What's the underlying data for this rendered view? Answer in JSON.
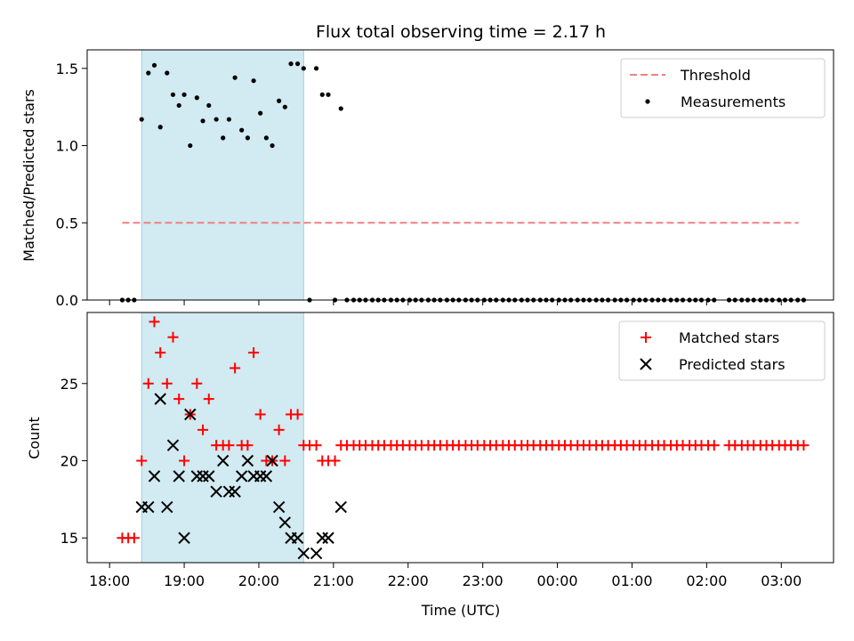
{
  "chart_data": [
    {
      "type": "scatter",
      "title": "Flux total observing time = 2.17 h",
      "xlabel": "",
      "ylabel": "Matched/Predicted stars",
      "ylim": [
        0,
        1.62
      ],
      "yticks": [
        "0.0",
        "0.5",
        "1.0",
        "1.5"
      ],
      "ytick_values": [
        0,
        0.5,
        1.0,
        1.5
      ],
      "xlim_hours": [
        17.7,
        27.7
      ],
      "highlight_band_hours": [
        18.43,
        20.6
      ],
      "highlight_color": "#add8e6",
      "legend": {
        "placement": "upper right",
        "entries": [
          "Threshold",
          "Measurements"
        ]
      },
      "series": [
        {
          "name": "Threshold",
          "kind": "dashed-line",
          "color": "#f08080",
          "x_hours": [
            18.17,
            27.23
          ],
          "values": [
            0.5,
            0.5
          ]
        },
        {
          "name": "Measurements",
          "kind": "points",
          "color": "#000000",
          "points": [
            [
              18.17,
              0
            ],
            [
              18.25,
              0
            ],
            [
              18.33,
              0
            ],
            [
              18.43,
              1.17
            ],
            [
              18.52,
              1.47
            ],
            [
              18.6,
              1.52
            ],
            [
              18.68,
              1.12
            ],
            [
              18.77,
              1.47
            ],
            [
              18.85,
              1.33
            ],
            [
              18.93,
              1.26
            ],
            [
              19.0,
              1.33
            ],
            [
              19.08,
              1.0
            ],
            [
              19.17,
              1.31
            ],
            [
              19.25,
              1.16
            ],
            [
              19.33,
              1.26
            ],
            [
              19.43,
              1.17
            ],
            [
              19.52,
              1.05
            ],
            [
              19.6,
              1.17
            ],
            [
              19.68,
              1.44
            ],
            [
              19.77,
              1.1
            ],
            [
              19.85,
              1.05
            ],
            [
              19.93,
              1.42
            ],
            [
              20.02,
              1.21
            ],
            [
              20.1,
              1.05
            ],
            [
              20.18,
              1.0
            ],
            [
              20.27,
              1.29
            ],
            [
              20.35,
              1.25
            ],
            [
              20.43,
              1.53
            ],
            [
              20.52,
              1.53
            ],
            [
              20.6,
              1.5
            ],
            [
              20.68,
              0
            ],
            [
              20.77,
              1.5
            ],
            [
              20.85,
              1.33
            ],
            [
              20.93,
              1.33
            ],
            [
              21.02,
              0
            ],
            [
              21.1,
              1.24
            ],
            [
              21.18,
              0
            ],
            [
              21.27,
              0
            ],
            [
              21.35,
              0
            ],
            [
              21.43,
              0
            ],
            [
              21.52,
              0
            ],
            [
              21.6,
              0
            ],
            [
              21.68,
              0
            ],
            [
              21.77,
              0
            ],
            [
              21.85,
              0
            ],
            [
              21.93,
              0
            ],
            [
              22.02,
              0
            ],
            [
              22.1,
              0
            ],
            [
              22.18,
              0
            ],
            [
              22.27,
              0
            ],
            [
              22.35,
              0
            ],
            [
              22.43,
              0
            ],
            [
              22.52,
              0
            ],
            [
              22.6,
              0
            ],
            [
              22.68,
              0
            ],
            [
              22.77,
              0
            ],
            [
              22.85,
              0
            ],
            [
              22.93,
              0
            ],
            [
              23.02,
              0
            ],
            [
              23.1,
              0
            ],
            [
              23.18,
              0
            ],
            [
              23.27,
              0
            ],
            [
              23.35,
              0
            ],
            [
              23.43,
              0
            ],
            [
              23.52,
              0
            ],
            [
              23.6,
              0
            ],
            [
              23.68,
              0
            ],
            [
              23.77,
              0
            ],
            [
              23.85,
              0
            ],
            [
              23.93,
              0
            ],
            [
              24.02,
              0
            ],
            [
              24.1,
              0
            ],
            [
              24.18,
              0
            ],
            [
              24.27,
              0
            ],
            [
              24.35,
              0
            ],
            [
              24.43,
              0
            ],
            [
              24.52,
              0
            ],
            [
              24.6,
              0
            ],
            [
              24.68,
              0
            ],
            [
              24.77,
              0
            ],
            [
              24.85,
              0
            ],
            [
              24.93,
              0
            ],
            [
              25.02,
              0
            ],
            [
              25.1,
              0
            ],
            [
              25.18,
              0
            ],
            [
              25.27,
              0
            ],
            [
              25.35,
              0
            ],
            [
              25.43,
              0
            ],
            [
              25.52,
              0
            ],
            [
              25.6,
              0
            ],
            [
              25.68,
              0
            ],
            [
              25.77,
              0
            ],
            [
              25.85,
              0
            ],
            [
              25.93,
              0
            ],
            [
              26.02,
              0
            ],
            [
              26.1,
              0
            ],
            [
              26.3,
              0
            ],
            [
              26.38,
              0
            ],
            [
              26.47,
              0
            ],
            [
              26.55,
              0
            ],
            [
              26.63,
              0
            ],
            [
              26.72,
              0
            ],
            [
              26.8,
              0
            ],
            [
              26.88,
              0
            ],
            [
              26.97,
              0
            ],
            [
              27.05,
              0
            ],
            [
              27.13,
              0
            ],
            [
              27.22,
              0
            ],
            [
              27.3,
              0
            ]
          ]
        }
      ]
    },
    {
      "type": "scatter",
      "title": "",
      "xlabel": "Time (UTC)",
      "ylabel": "Count",
      "ylim": [
        13.4,
        29.6
      ],
      "yticks": [
        "15",
        "20",
        "25"
      ],
      "ytick_values": [
        15,
        20,
        25
      ],
      "xlim_hours": [
        17.7,
        27.7
      ],
      "xticks": [
        "18:00",
        "19:00",
        "20:00",
        "21:00",
        "22:00",
        "23:00",
        "00:00",
        "01:00",
        "02:00",
        "03:00"
      ],
      "xtick_hours": [
        18,
        19,
        20,
        21,
        22,
        23,
        24,
        25,
        26,
        27
      ],
      "highlight_band_hours": [
        18.43,
        20.6
      ],
      "highlight_color": "#add8e6",
      "legend": {
        "placement": "upper right",
        "entries": [
          "Matched stars",
          "Predicted stars"
        ]
      },
      "series": [
        {
          "name": "Matched stars",
          "marker": "+",
          "color": "#ff0000",
          "points": [
            [
              18.17,
              15
            ],
            [
              18.25,
              15
            ],
            [
              18.33,
              15
            ],
            [
              18.43,
              20
            ],
            [
              18.52,
              25
            ],
            [
              18.6,
              29
            ],
            [
              18.68,
              27
            ],
            [
              18.77,
              25
            ],
            [
              18.85,
              28
            ],
            [
              18.93,
              24
            ],
            [
              19.0,
              20
            ],
            [
              19.08,
              23
            ],
            [
              19.17,
              25
            ],
            [
              19.25,
              22
            ],
            [
              19.33,
              24
            ],
            [
              19.43,
              21
            ],
            [
              19.52,
              21
            ],
            [
              19.6,
              21
            ],
            [
              19.68,
              26
            ],
            [
              19.77,
              21
            ],
            [
              19.85,
              21
            ],
            [
              19.93,
              27
            ],
            [
              20.02,
              23
            ],
            [
              20.1,
              20
            ],
            [
              20.18,
              20
            ],
            [
              20.27,
              22
            ],
            [
              20.35,
              20
            ],
            [
              20.43,
              23
            ],
            [
              20.52,
              23
            ],
            [
              20.6,
              21
            ],
            [
              20.68,
              21
            ],
            [
              20.77,
              21
            ],
            [
              20.85,
              20
            ],
            [
              20.93,
              20
            ],
            [
              21.02,
              20
            ],
            [
              21.1,
              21
            ],
            [
              21.18,
              21
            ],
            [
              21.27,
              21
            ],
            [
              21.35,
              21
            ],
            [
              21.43,
              21
            ],
            [
              21.52,
              21
            ],
            [
              21.6,
              21
            ],
            [
              21.68,
              21
            ],
            [
              21.77,
              21
            ],
            [
              21.85,
              21
            ],
            [
              21.93,
              21
            ],
            [
              22.02,
              21
            ],
            [
              22.1,
              21
            ],
            [
              22.18,
              21
            ],
            [
              22.27,
              21
            ],
            [
              22.35,
              21
            ],
            [
              22.43,
              21
            ],
            [
              22.52,
              21
            ],
            [
              22.6,
              21
            ],
            [
              22.68,
              21
            ],
            [
              22.77,
              21
            ],
            [
              22.85,
              21
            ],
            [
              22.93,
              21
            ],
            [
              23.02,
              21
            ],
            [
              23.1,
              21
            ],
            [
              23.18,
              21
            ],
            [
              23.27,
              21
            ],
            [
              23.35,
              21
            ],
            [
              23.43,
              21
            ],
            [
              23.52,
              21
            ],
            [
              23.6,
              21
            ],
            [
              23.68,
              21
            ],
            [
              23.77,
              21
            ],
            [
              23.85,
              21
            ],
            [
              23.93,
              21
            ],
            [
              24.02,
              21
            ],
            [
              24.1,
              21
            ],
            [
              24.18,
              21
            ],
            [
              24.27,
              21
            ],
            [
              24.35,
              21
            ],
            [
              24.43,
              21
            ],
            [
              24.52,
              21
            ],
            [
              24.6,
              21
            ],
            [
              24.68,
              21
            ],
            [
              24.77,
              21
            ],
            [
              24.85,
              21
            ],
            [
              24.93,
              21
            ],
            [
              25.02,
              21
            ],
            [
              25.1,
              21
            ],
            [
              25.18,
              21
            ],
            [
              25.27,
              21
            ],
            [
              25.35,
              21
            ],
            [
              25.43,
              21
            ],
            [
              25.52,
              21
            ],
            [
              25.6,
              21
            ],
            [
              25.68,
              21
            ],
            [
              25.77,
              21
            ],
            [
              25.85,
              21
            ],
            [
              25.93,
              21
            ],
            [
              26.02,
              21
            ],
            [
              26.1,
              21
            ],
            [
              26.3,
              21
            ],
            [
              26.38,
              21
            ],
            [
              26.47,
              21
            ],
            [
              26.55,
              21
            ],
            [
              26.63,
              21
            ],
            [
              26.72,
              21
            ],
            [
              26.8,
              21
            ],
            [
              26.88,
              21
            ],
            [
              26.97,
              21
            ],
            [
              27.05,
              21
            ],
            [
              27.13,
              21
            ],
            [
              27.22,
              21
            ],
            [
              27.3,
              21
            ]
          ]
        },
        {
          "name": "Predicted stars",
          "marker": "x",
          "color": "#000000",
          "points": [
            [
              18.43,
              17
            ],
            [
              18.52,
              17
            ],
            [
              18.6,
              19
            ],
            [
              18.68,
              24
            ],
            [
              18.77,
              17
            ],
            [
              18.85,
              21
            ],
            [
              18.93,
              19
            ],
            [
              19.0,
              15
            ],
            [
              19.08,
              23
            ],
            [
              19.17,
              19
            ],
            [
              19.25,
              19
            ],
            [
              19.33,
              19
            ],
            [
              19.43,
              18
            ],
            [
              19.52,
              20
            ],
            [
              19.6,
              18
            ],
            [
              19.68,
              18
            ],
            [
              19.77,
              19
            ],
            [
              19.85,
              20
            ],
            [
              19.93,
              19
            ],
            [
              20.02,
              19
            ],
            [
              20.1,
              19
            ],
            [
              20.18,
              20
            ],
            [
              20.27,
              17
            ],
            [
              20.35,
              16
            ],
            [
              20.43,
              15
            ],
            [
              20.52,
              15
            ],
            [
              20.6,
              14
            ],
            [
              20.77,
              14
            ],
            [
              20.85,
              15
            ],
            [
              20.93,
              15
            ],
            [
              21.1,
              17
            ]
          ]
        }
      ]
    }
  ]
}
